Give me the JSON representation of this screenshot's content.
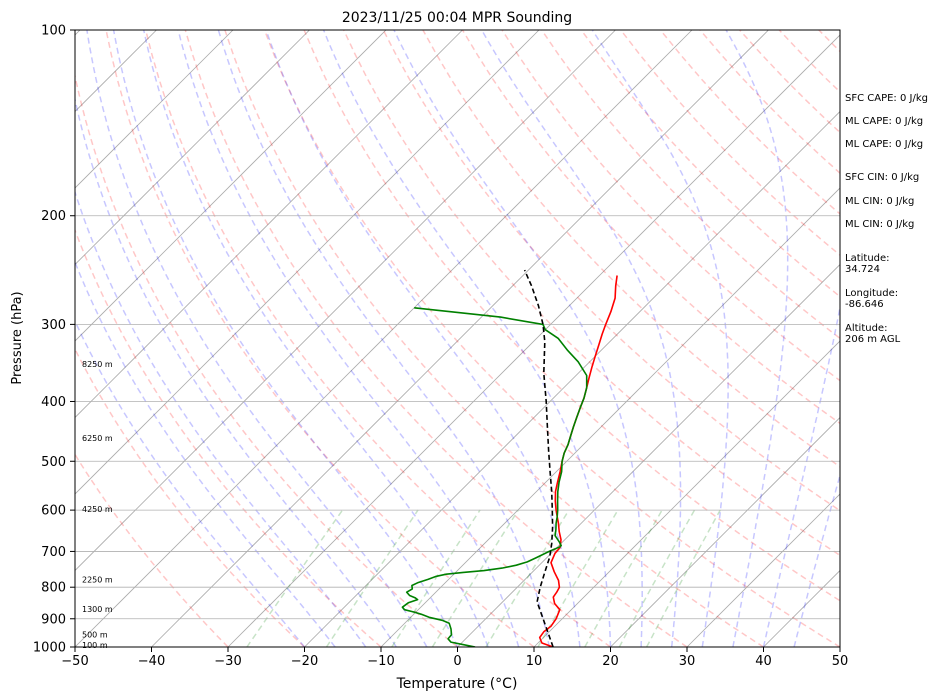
{
  "chart_data": {
    "type": "line",
    "title": "2023/11/25 00:04 MPR Sounding",
    "xlabel": "Temperature (°C)",
    "ylabel": "Pressure (hPa)",
    "xlim": [
      -50,
      50
    ],
    "ylim": [
      1000,
      100
    ],
    "y_scale": "log",
    "grid": true,
    "x_ticks": [
      "−50",
      "−40",
      "−30",
      "−20",
      "−10",
      "0",
      "10",
      "20",
      "30",
      "40",
      "50"
    ],
    "y_ticks": [
      "100",
      "200",
      "300",
      "400",
      "500",
      "600",
      "700",
      "800",
      "900",
      "1000"
    ],
    "height_labels": [
      {
        "text": "8250 m",
        "pressure": 348
      },
      {
        "text": "6250 m",
        "pressure": 458
      },
      {
        "text": "4250 m",
        "pressure": 597
      },
      {
        "text": "2250 m",
        "pressure": 777
      },
      {
        "text": "1300 m",
        "pressure": 868
      },
      {
        "text": "500 m",
        "pressure": 955
      },
      {
        "text": "100 m",
        "pressure": 992
      }
    ],
    "series": [
      {
        "name": "Temperature",
        "color": "#ff0000",
        "points": [
          [
            12.5,
            1000
          ],
          [
            10.5,
            985
          ],
          [
            9.5,
            965
          ],
          [
            9.3,
            945
          ],
          [
            9.5,
            925
          ],
          [
            9.2,
            900
          ],
          [
            8.5,
            870
          ],
          [
            7.0,
            850
          ],
          [
            6.0,
            830
          ],
          [
            5.8,
            815
          ],
          [
            5.5,
            800
          ],
          [
            4.5,
            780
          ],
          [
            2.8,
            755
          ],
          [
            1.2,
            730
          ],
          [
            0.5,
            705
          ],
          [
            0.4,
            690
          ],
          [
            -0.5,
            670
          ],
          [
            -1.8,
            650
          ],
          [
            -3.0,
            630
          ],
          [
            -4.0,
            615
          ],
          [
            -5.0,
            600
          ],
          [
            -6.3,
            580
          ],
          [
            -7.5,
            560
          ],
          [
            -8.5,
            540
          ],
          [
            -9.5,
            520
          ],
          [
            -10.6,
            500
          ],
          [
            -11.4,
            485
          ],
          [
            -12.0,
            470
          ],
          [
            -12.8,
            455
          ],
          [
            -13.6,
            440
          ],
          [
            -14.4,
            425
          ],
          [
            -15.2,
            410
          ],
          [
            -16.0,
            395
          ],
          [
            -17.0,
            380
          ],
          [
            -18.0,
            366
          ],
          [
            -19.0,
            352
          ],
          [
            -20.0,
            338
          ],
          [
            -21.0,
            324
          ],
          [
            -22.0,
            311
          ],
          [
            -22.8,
            300
          ],
          [
            -23.8,
            286
          ],
          [
            -25.0,
            272
          ],
          [
            -26.5,
            260
          ],
          [
            -27.7,
            250
          ]
        ]
      },
      {
        "name": "Dewpoint",
        "color": "#008000",
        "points": [
          [
            2.3,
            1000
          ],
          [
            0.2,
            990
          ],
          [
            -1.5,
            982
          ],
          [
            -2.3,
            970
          ],
          [
            -2.4,
            955
          ],
          [
            -3.2,
            935
          ],
          [
            -4.2,
            915
          ],
          [
            -5.5,
            905
          ],
          [
            -7.6,
            895
          ],
          [
            -9.0,
            885
          ],
          [
            -10.2,
            878
          ],
          [
            -11.8,
            870
          ],
          [
            -12.4,
            862
          ],
          [
            -12.2,
            848
          ],
          [
            -11.4,
            838
          ],
          [
            -12.0,
            832
          ],
          [
            -13.0,
            825
          ],
          [
            -13.8,
            815
          ],
          [
            -13.5,
            805
          ],
          [
            -14.0,
            795
          ],
          [
            -13.6,
            787
          ],
          [
            -12.7,
            777
          ],
          [
            -12.0,
            768
          ],
          [
            -11.0,
            762
          ],
          [
            -9.0,
            757
          ],
          [
            -6.5,
            752
          ],
          [
            -4.5,
            745
          ],
          [
            -3.0,
            737
          ],
          [
            -2.0,
            728
          ],
          [
            -1.4,
            717
          ],
          [
            -0.5,
            700
          ],
          [
            0.3,
            688
          ],
          [
            0.3,
            685
          ],
          [
            -0.4,
            676
          ],
          [
            -1.8,
            660
          ],
          [
            -2.5,
            645
          ],
          [
            -3.3,
            630
          ],
          [
            -4.0,
            615
          ],
          [
            -4.8,
            600
          ],
          [
            -6.0,
            580
          ],
          [
            -7.2,
            560
          ],
          [
            -8.3,
            540
          ],
          [
            -9.3,
            520
          ],
          [
            -10.6,
            500
          ],
          [
            -11.4,
            485
          ],
          [
            -12.0,
            470
          ],
          [
            -12.8,
            455
          ],
          [
            -13.6,
            440
          ],
          [
            -14.4,
            425
          ],
          [
            -15.2,
            410
          ],
          [
            -16.0,
            395
          ],
          [
            -17.0,
            380
          ],
          [
            -18.6,
            363
          ],
          [
            -21.5,
            345
          ],
          [
            -24.5,
            330
          ],
          [
            -27.2,
            316
          ],
          [
            -30.0,
            306
          ],
          [
            -31.0,
            300
          ],
          [
            -37.5,
            292
          ],
          [
            -50,
            282
          ]
        ]
      },
      {
        "name": "Parcel",
        "color": "#000000",
        "points": [
          [
            12.5,
            1000
          ],
          [
            4.5,
            845
          ],
          [
            3.0,
            800
          ],
          [
            1.5,
            752
          ],
          [
            0.3,
            715
          ],
          [
            -1.2,
            680
          ],
          [
            -3.2,
            640
          ],
          [
            -5.5,
            600
          ],
          [
            -8.0,
            560
          ],
          [
            -10.8,
            520
          ],
          [
            -13.8,
            480
          ],
          [
            -17.0,
            440
          ],
          [
            -20.5,
            400
          ],
          [
            -24.5,
            360
          ],
          [
            -28.5,
            320
          ],
          [
            -31.0,
            300
          ],
          [
            -34.0,
            280
          ],
          [
            -37.5,
            260
          ],
          [
            -40.5,
            245
          ]
        ]
      }
    ]
  },
  "stats": {
    "sfc_cape": "SFC CAPE: 0 J/kg",
    "ml_cape_1": "ML CAPE: 0 J/kg",
    "ml_cape_2": "ML CAPE: 0 J/kg",
    "sfc_cin": "SFC CIN: 0 J/kg",
    "ml_cin_1": "ML CIN: 0 J/kg",
    "ml_cin_2": "ML CIN: 0 J/kg",
    "latitude_label": "Latitude:",
    "latitude_value": "34.724",
    "longitude_label": "Longitude:",
    "longitude_value": "-86.646",
    "altitude_label": "Altitude:",
    "altitude_value": "206 m AGL"
  }
}
